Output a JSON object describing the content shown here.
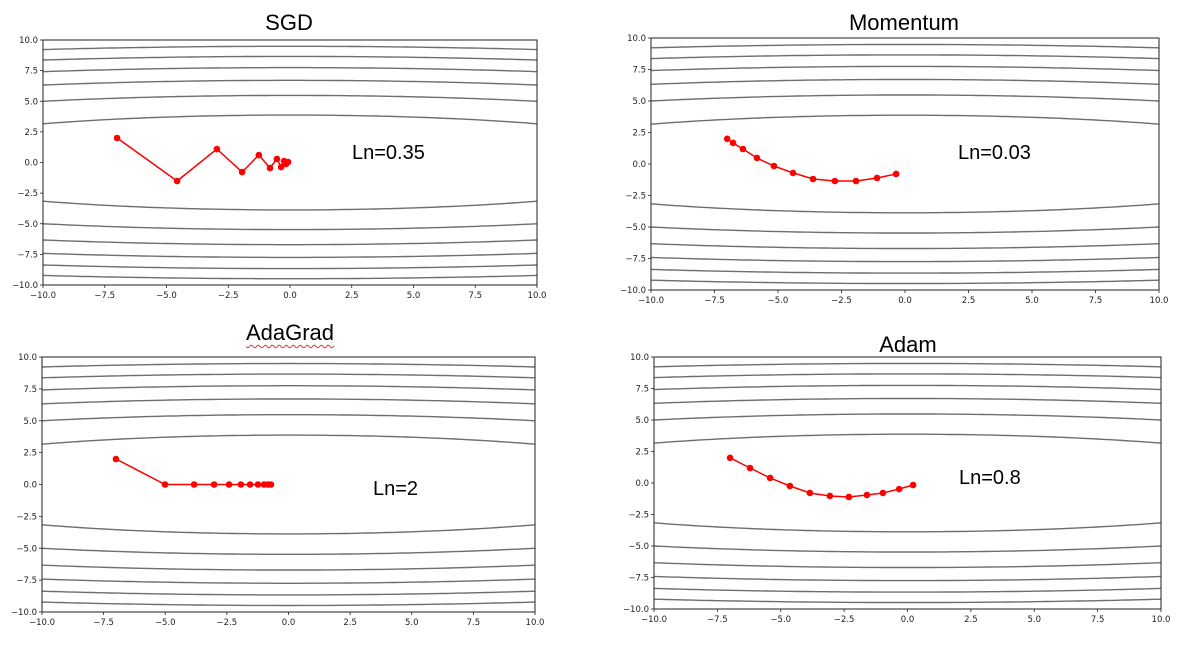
{
  "figure": {
    "background": "#ffffff",
    "contour_color": "#6e6e6e",
    "path_color": "#ff0000"
  },
  "chart_data": [
    {
      "type": "line",
      "title": "SGD",
      "annotation": "Ln=0.35",
      "xlabel": "",
      "ylabel": "",
      "xlim": [
        -10,
        10
      ],
      "ylim": [
        -10,
        10
      ],
      "xticks": [
        "−10.0",
        "−7.5",
        "−5.0",
        "−2.5",
        "0.0",
        "2.5",
        "5.0",
        "7.5",
        "10.0"
      ],
      "yticks": [
        "10.0",
        "7.5",
        "5.0",
        "2.5",
        "0.0",
        "−2.5",
        "−5.0",
        "−7.5",
        "−10.0"
      ],
      "contour_function": "x^2/20 + y^2",
      "contour_levels": [
        15,
        30,
        45,
        60,
        75,
        90
      ],
      "series": [
        {
          "name": "SGD path",
          "x": [
            -7.0,
            -4.57,
            -2.96,
            -1.94,
            -1.26,
            -0.81,
            -0.53,
            -0.36,
            -0.24,
            -0.16,
            -0.08
          ],
          "y": [
            2.0,
            -1.51,
            1.1,
            -0.78,
            0.61,
            -0.45,
            0.29,
            -0.37,
            0.12,
            -0.12,
            0.04
          ]
        }
      ]
    },
    {
      "type": "line",
      "title": "Momentum",
      "annotation": "Ln=0.03",
      "xlabel": "",
      "ylabel": "",
      "xlim": [
        -10,
        10
      ],
      "ylim": [
        -10,
        10
      ],
      "xticks": [
        "−10.0",
        "−7.5",
        "−5.0",
        "−2.5",
        "0.0",
        "2.5",
        "5.0",
        "7.5",
        "10.0"
      ],
      "yticks": [
        "10.0",
        "7.5",
        "5.0",
        "2.5",
        "0.0",
        "−2.5",
        "−5.0",
        "−7.5",
        "−10.0"
      ],
      "contour_function": "x^2/20 + y^2",
      "contour_levels": [
        15,
        30,
        45,
        60,
        75,
        90
      ],
      "series": [
        {
          "name": "Momentum path",
          "x": [
            -7.0,
            -6.77,
            -6.38,
            -5.83,
            -5.16,
            -4.41,
            -3.62,
            -2.76,
            -1.93,
            -1.1,
            -0.35
          ],
          "y": [
            2.0,
            1.67,
            1.19,
            0.48,
            -0.16,
            -0.71,
            -1.19,
            -1.35,
            -1.35,
            -1.11,
            -0.79
          ]
        }
      ]
    },
    {
      "type": "line",
      "title": "AdaGrad",
      "annotation": "Ln=2",
      "xlabel": "",
      "ylabel": "",
      "xlim": [
        -10,
        10
      ],
      "ylim": [
        -10,
        10
      ],
      "xticks": [
        "−10.0",
        "−7.5",
        "−5.0",
        "−2.5",
        "0.0",
        "2.5",
        "5.0",
        "7.5",
        "10.0"
      ],
      "yticks": [
        "10.0",
        "7.5",
        "5.0",
        "2.5",
        "0.0",
        "−2.5",
        "−5.0",
        "−7.5",
        "−10.0"
      ],
      "contour_function": "x^2/20 + y^2",
      "contour_levels": [
        15,
        30,
        45,
        60,
        75,
        90
      ],
      "series": [
        {
          "name": "AdaGrad path",
          "x": [
            -7.0,
            -5.01,
            -3.83,
            -3.02,
            -2.41,
            -1.93,
            -1.56,
            -1.24,
            -0.99,
            -0.83,
            -0.71
          ],
          "y": [
            2.0,
            0.0,
            0.0,
            0.0,
            0.0,
            0.0,
            0.0,
            0.0,
            0.0,
            0.0,
            0.0
          ]
        }
      ]
    },
    {
      "type": "line",
      "title": "Adam",
      "annotation": "Ln=0.8",
      "xlabel": "",
      "ylabel": "",
      "xlim": [
        -10,
        10
      ],
      "ylim": [
        -10,
        10
      ],
      "xticks": [
        "−10.0",
        "−7.5",
        "−5.0",
        "−2.5",
        "0.0",
        "2.5",
        "5.0",
        "7.5",
        "10.0"
      ],
      "yticks": [
        "10.0",
        "7.5",
        "5.0",
        "2.5",
        "0.0",
        "−2.5",
        "−5.0",
        "−7.5",
        "−10.0"
      ],
      "contour_function": "x^2/20 + y^2",
      "contour_levels": [
        15,
        30,
        45,
        60,
        75,
        90
      ],
      "series": [
        {
          "name": "Adam path",
          "x": [
            -7.0,
            -6.21,
            -5.42,
            -4.64,
            -3.85,
            -3.06,
            -2.31,
            -1.6,
            -0.97,
            -0.33,
            0.22
          ],
          "y": [
            2.0,
            1.19,
            0.4,
            -0.24,
            -0.79,
            -1.03,
            -1.11,
            -0.95,
            -0.79,
            -0.48,
            -0.16
          ]
        }
      ]
    }
  ]
}
